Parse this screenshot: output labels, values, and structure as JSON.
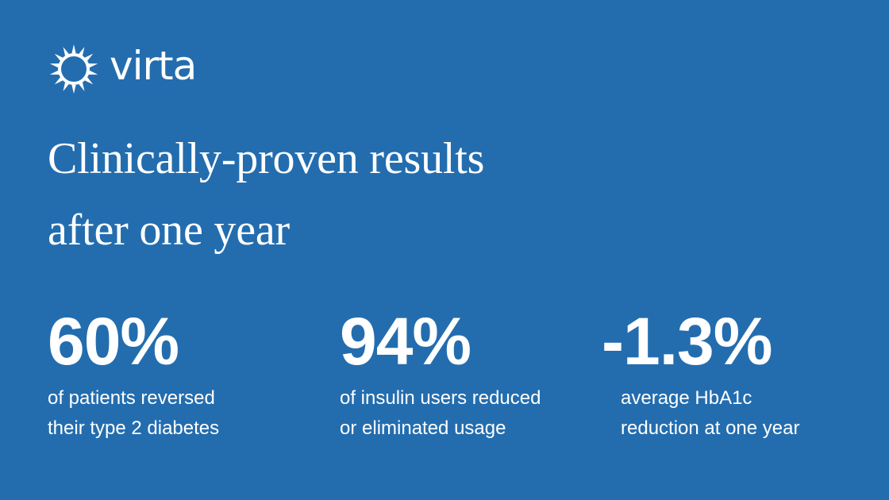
{
  "brand": {
    "name": "virta",
    "logo_icon": "sun-icon",
    "background_color": "#236daf",
    "text_color": "#ffffff"
  },
  "headline": {
    "line1": "Clinically-proven results",
    "line2": "after one year"
  },
  "stats": [
    {
      "value": "60%",
      "caption_line1": "of patients reversed",
      "caption_line2": "their type 2 diabetes"
    },
    {
      "value": "94%",
      "caption_line1": "of insulin users reduced",
      "caption_line2": "or eliminated usage"
    },
    {
      "value": "-1.3%",
      "caption_line1": "average HbA1c",
      "caption_line2": "reduction at one year"
    }
  ]
}
